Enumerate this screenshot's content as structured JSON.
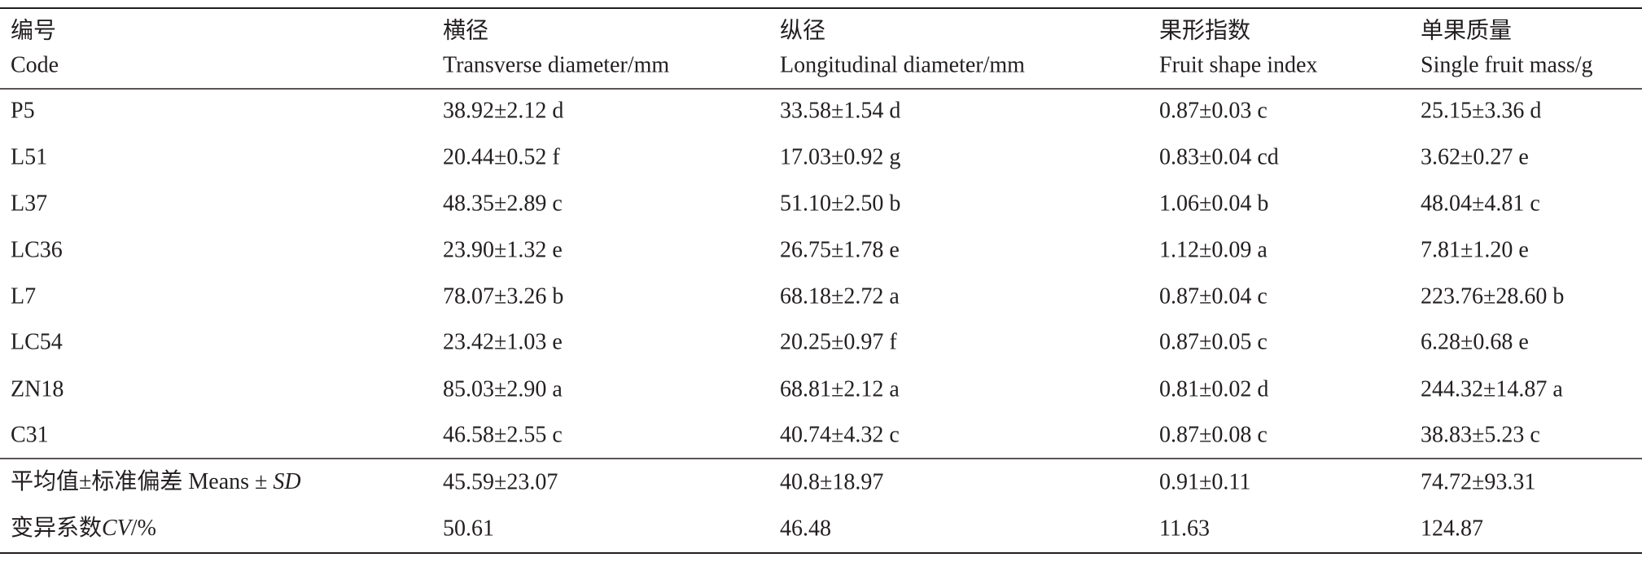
{
  "table": {
    "header": [
      {
        "zh": "编号",
        "en": "Code"
      },
      {
        "zh": "横径",
        "en": "Transverse diameter/mm"
      },
      {
        "zh": "纵径",
        "en": "Longitudinal diameter/mm"
      },
      {
        "zh": "果形指数",
        "en": "Fruit shape index"
      },
      {
        "zh": "单果质量",
        "en": "Single fruit mass/g"
      }
    ],
    "rows": [
      [
        "P5",
        "38.92±2.12 d",
        "33.58±1.54 d",
        "0.87±0.03 c",
        "25.15±3.36 d"
      ],
      [
        "L51",
        "20.44±0.52 f",
        "17.03±0.92 g",
        "0.83±0.04 cd",
        "3.62±0.27 e"
      ],
      [
        "L37",
        "48.35±2.89 c",
        "51.10±2.50 b",
        "1.06±0.04 b",
        "48.04±4.81 c"
      ],
      [
        "LC36",
        "23.90±1.32 e",
        "26.75±1.78 e",
        "1.12±0.09 a",
        "7.81±1.20 e"
      ],
      [
        "L7",
        "78.07±3.26 b",
        "68.18±2.72 a",
        "0.87±0.04 c",
        "223.76±28.60 b"
      ],
      [
        "LC54",
        "23.42±1.03 e",
        "20.25±0.97 f",
        "0.87±0.05 c",
        "6.28±0.68 e"
      ],
      [
        "ZN18",
        "85.03±2.90 a",
        "68.81±2.12 a",
        "0.81±0.02 d",
        "244.32±14.87 a"
      ],
      [
        "C31",
        "46.58±2.55 c",
        "40.74±4.32 c",
        "0.87±0.08 c",
        "38.83±5.23 c"
      ]
    ],
    "summary": [
      {
        "label": [
          {
            "text": "平均值±标准偏差 Means ± "
          },
          {
            "text": "SD",
            "italic": true
          }
        ],
        "cells": [
          "45.59±23.07",
          "40.8±18.97",
          "0.91±0.11",
          "74.72±93.31"
        ]
      },
      {
        "label": [
          {
            "text": "变异系数"
          },
          {
            "text": "CV",
            "italic": true
          },
          {
            "text": "/%"
          }
        ],
        "cells": [
          "50.61",
          "46.48",
          "11.63",
          "124.87"
        ]
      }
    ]
  }
}
